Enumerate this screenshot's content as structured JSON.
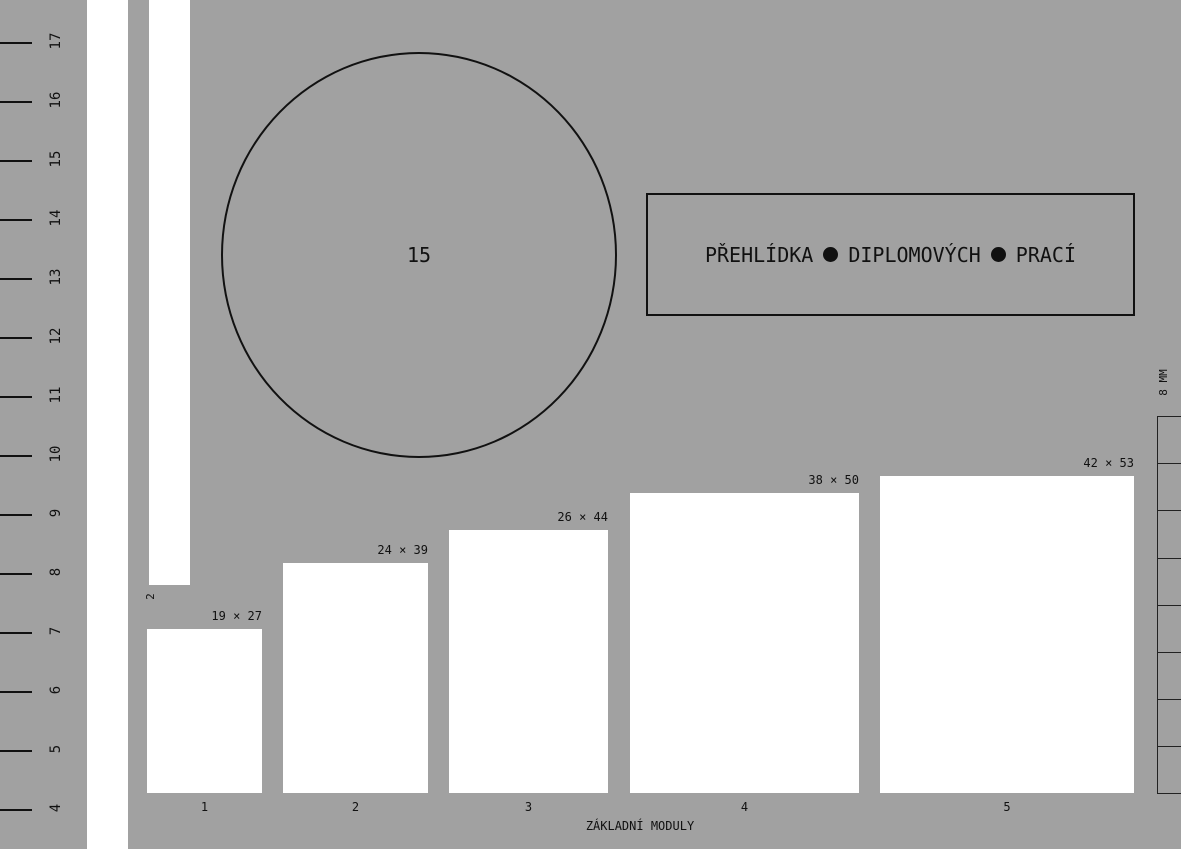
{
  "ruler": {
    "ticks": [
      "17",
      "16",
      "15",
      "14",
      "13",
      "12",
      "11",
      "10",
      "9",
      "8",
      "7",
      "6",
      "5",
      "4"
    ]
  },
  "strip_label": "2",
  "circle": {
    "label": "15"
  },
  "title_box": {
    "words": [
      "PŘEHLÍDKA",
      "DIPLOMOVÝCH",
      "PRACÍ"
    ]
  },
  "scale": {
    "label": "8 MM"
  },
  "modules": [
    {
      "number": "1",
      "size": "19 × 27"
    },
    {
      "number": "2",
      "size": "24 × 39"
    },
    {
      "number": "3",
      "size": "26 × 44"
    },
    {
      "number": "4",
      "size": "38 × 50"
    },
    {
      "number": "5",
      "size": "42 × 53"
    }
  ],
  "modules_caption": "ZÁKLADNÍ MODULY"
}
